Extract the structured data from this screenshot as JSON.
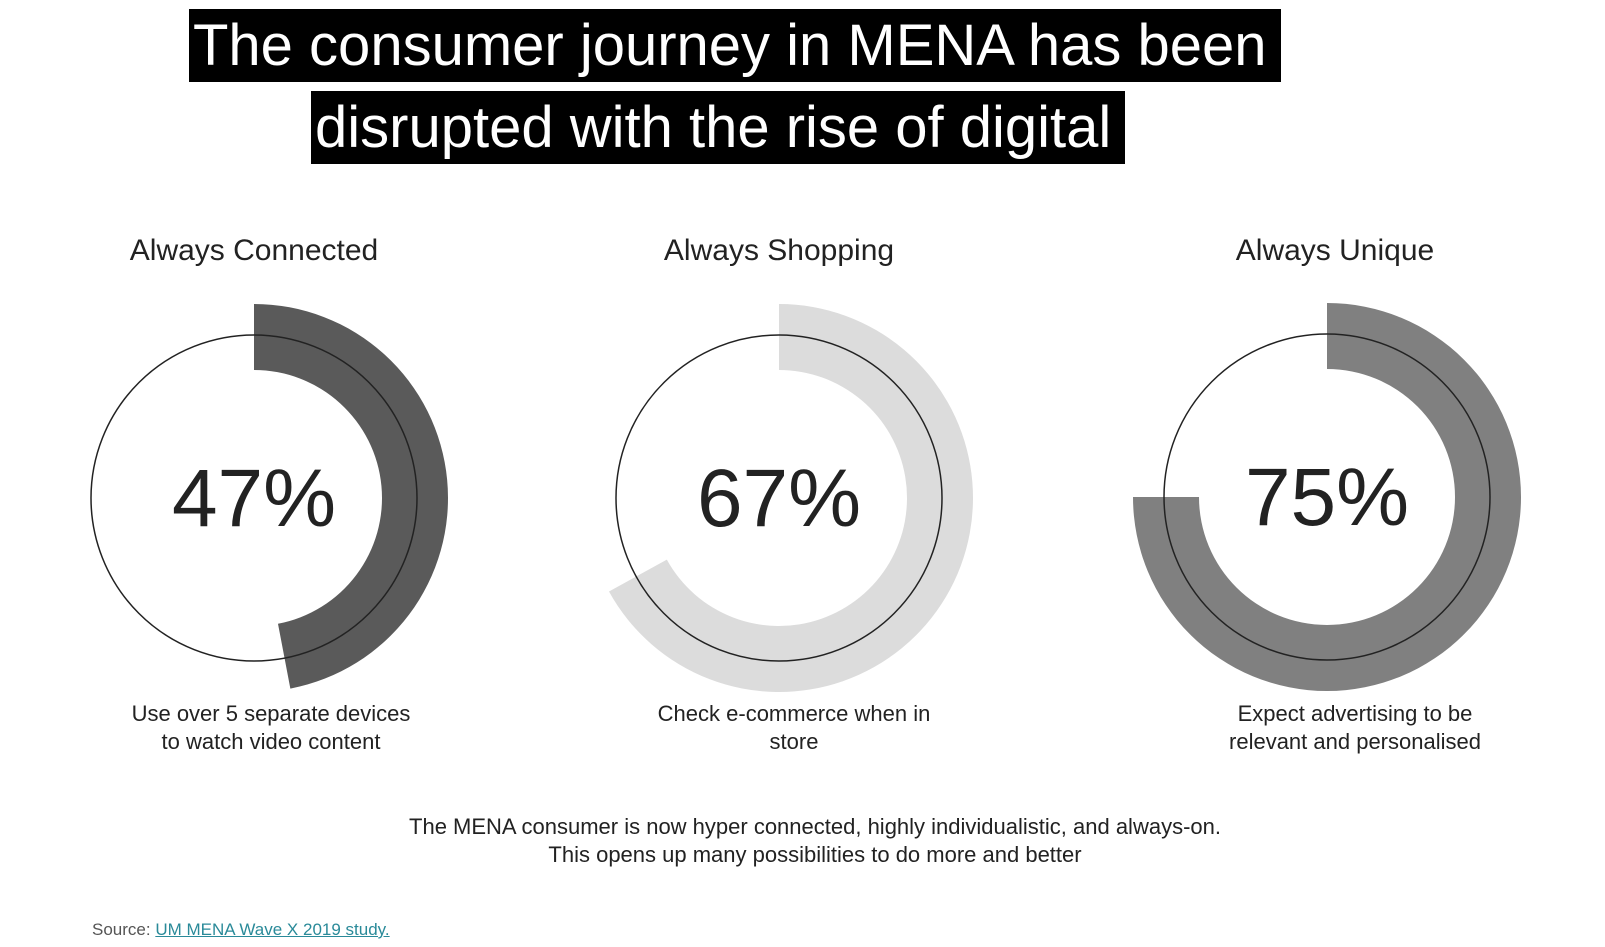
{
  "headline": {
    "line1": "The consumer journey in MENA has been",
    "line2": "disrupted with the rise of digital"
  },
  "chart_data": {
    "type": "radial-progress",
    "items": [
      {
        "title": "Always Connected",
        "value": 47,
        "label": "47%",
        "caption": "Use over 5 separate devices to watch video content",
        "color": "#5a5a5a"
      },
      {
        "title": "Always Shopping",
        "value": 67,
        "label": "67%",
        "caption": "Check e-commerce when in store",
        "color": "#dcdcdc"
      },
      {
        "title": "Always Unique",
        "value": 75,
        "label": "75%",
        "caption": "Expect advertising to be relevant and personalised",
        "color": "#808080"
      }
    ]
  },
  "summary": "The MENA consumer is now hyper connected, highly individualistic, and always-on. This opens up many possibilities to do more and better",
  "source": {
    "prefix": "Source:",
    "link": "UM MENA Wave X 2019 study."
  }
}
